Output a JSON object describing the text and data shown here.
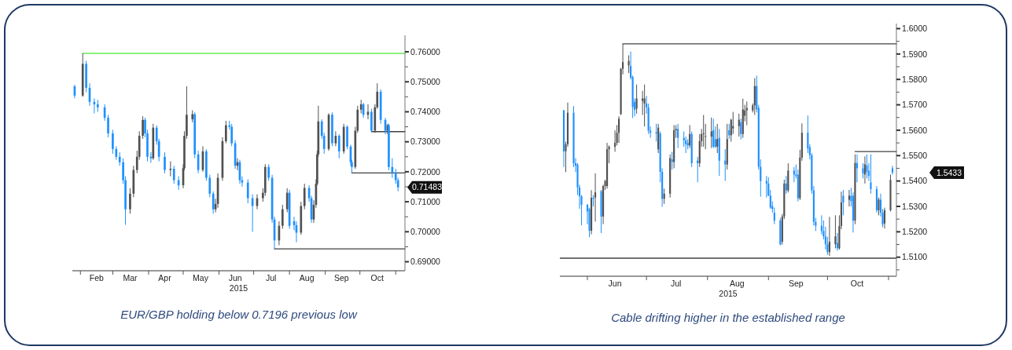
{
  "chart_data": [
    {
      "type": "candlestick",
      "xlabel": "2015",
      "xlim": [
        "2015-01-25",
        "2015-11-09"
      ],
      "ylim": [
        0.687,
        0.7655
      ],
      "xticks": [
        {
          "value": "2015-02-01",
          "label": null
        },
        {
          "value": "2015-02-15",
          "label": "Feb"
        },
        {
          "value": "2015-03-01",
          "label": null
        },
        {
          "value": "2015-03-16",
          "label": "Mar"
        },
        {
          "value": "2015-04-01",
          "label": null
        },
        {
          "value": "2015-04-15",
          "label": "Apr"
        },
        {
          "value": "2015-05-01",
          "label": null
        },
        {
          "value": "2015-05-16",
          "label": "May"
        },
        {
          "value": "2015-06-01",
          "label": null
        },
        {
          "value": "2015-06-15",
          "label": "Jun"
        },
        {
          "value": "2015-07-01",
          "label": null
        },
        {
          "value": "2015-07-16",
          "label": "Jul"
        },
        {
          "value": "2015-08-01",
          "label": null
        },
        {
          "value": "2015-08-16",
          "label": "Aug"
        },
        {
          "value": "2015-09-01",
          "label": null
        },
        {
          "value": "2015-09-15",
          "label": "Sep"
        },
        {
          "value": "2015-10-01",
          "label": null
        },
        {
          "value": "2015-10-16",
          "label": "Oct"
        },
        {
          "value": "2015-11-01",
          "label": null
        }
      ],
      "yticks": [
        {
          "value": 0.69,
          "label": "0.69000"
        },
        {
          "value": 0.695,
          "label": null
        },
        {
          "value": 0.7,
          "label": "0.70000"
        },
        {
          "value": 0.705,
          "label": null
        },
        {
          "value": 0.71,
          "label": "0.71000"
        },
        {
          "value": 0.715,
          "label": null
        },
        {
          "value": 0.72,
          "label": "0.72000"
        },
        {
          "value": 0.725,
          "label": null
        },
        {
          "value": 0.73,
          "label": "0.73000"
        },
        {
          "value": 0.735,
          "label": null
        },
        {
          "value": 0.74,
          "label": "0.74000"
        },
        {
          "value": 0.745,
          "label": null
        },
        {
          "value": 0.75,
          "label": "0.75000"
        },
        {
          "value": 0.755,
          "label": null
        },
        {
          "value": 0.76,
          "label": "0.76000"
        }
      ],
      "x": [
        "2015-01-27",
        "2015-02-03",
        "2015-02-06",
        "2015-02-09",
        "2015-02-13",
        "2015-02-16",
        "2015-02-22",
        "2015-02-25",
        "2015-03-01",
        "2015-03-04",
        "2015-03-07",
        "2015-03-10",
        "2015-03-12",
        "2015-03-16",
        "2015-03-19",
        "2015-03-22",
        "2015-03-24",
        "2015-03-27",
        "2015-03-29",
        "2015-03-31",
        "2015-04-03",
        "2015-04-05",
        "2015-04-08",
        "2015-04-10",
        "2015-04-15",
        "2015-04-20",
        "2015-04-23",
        "2015-04-27",
        "2015-05-01",
        "2015-05-02",
        "2015-05-04",
        "2015-05-09",
        "2015-05-11",
        "2015-05-14",
        "2015-05-18",
        "2015-05-21",
        "2015-05-24",
        "2015-05-27",
        "2015-05-29",
        "2015-05-31",
        "2015-06-04",
        "2015-06-07",
        "2015-06-10",
        "2015-06-12",
        "2015-06-15",
        "2015-06-17",
        "2015-06-19",
        "2015-06-21",
        "2015-06-26",
        "2015-06-30",
        "2015-07-04",
        "2015-07-09",
        "2015-07-11",
        "2015-07-14",
        "2015-07-17",
        "2015-07-19",
        "2015-07-23",
        "2015-07-26",
        "2015-07-30",
        "2015-08-01",
        "2015-08-05",
        "2015-08-07",
        "2015-08-11",
        "2015-08-14",
        "2015-08-18",
        "2015-08-20",
        "2015-08-22",
        "2015-08-24",
        "2015-08-25",
        "2015-08-26",
        "2015-08-29",
        "2015-08-31",
        "2015-09-04",
        "2015-09-07",
        "2015-09-10",
        "2015-09-13",
        "2015-09-17",
        "2015-09-20",
        "2015-09-23",
        "2015-09-24",
        "2015-09-27",
        "2015-09-29",
        "2015-10-02",
        "2015-10-04",
        "2015-10-08",
        "2015-10-11",
        "2015-10-14",
        "2015-10-16",
        "2015-10-19",
        "2015-10-23",
        "2015-10-25",
        "2015-10-26",
        "2015-10-29",
        "2015-11-01",
        "2015-11-03"
      ],
      "ohlc": [
        [
          0.7485,
          0.749,
          0.7445,
          0.7454
        ],
        [
          0.7454,
          0.7595,
          0.745,
          0.756
        ],
        [
          0.756,
          0.757,
          0.7465,
          0.748
        ],
        [
          0.748,
          0.7495,
          0.742,
          0.7433
        ],
        [
          0.7433,
          0.7445,
          0.7395,
          0.7425
        ],
        [
          0.7425,
          0.744,
          0.74,
          0.7415
        ],
        [
          0.7415,
          0.7425,
          0.737,
          0.738
        ],
        [
          0.738,
          0.739,
          0.7315,
          0.7328
        ],
        [
          0.7328,
          0.734,
          0.726,
          0.7276
        ],
        [
          0.7276,
          0.7285,
          0.724,
          0.725
        ],
        [
          0.725,
          0.7265,
          0.722,
          0.7232
        ],
        [
          0.7232,
          0.7245,
          0.716,
          0.7172
        ],
        [
          0.7172,
          0.7185,
          0.7023,
          0.7075
        ],
        [
          0.7075,
          0.7145,
          0.706,
          0.7127
        ],
        [
          0.7127,
          0.722,
          0.7115,
          0.7206
        ],
        [
          0.7206,
          0.727,
          0.7195,
          0.725
        ],
        [
          0.725,
          0.7335,
          0.724,
          0.732
        ],
        [
          0.732,
          0.7385,
          0.731,
          0.7373
        ],
        [
          0.7373,
          0.738,
          0.7315,
          0.7328
        ],
        [
          0.7328,
          0.734,
          0.7235,
          0.725
        ],
        [
          0.725,
          0.7265,
          0.723,
          0.7245
        ],
        [
          0.7245,
          0.736,
          0.724,
          0.7347
        ],
        [
          0.7347,
          0.7355,
          0.729,
          0.7302
        ],
        [
          0.7302,
          0.731,
          0.7235,
          0.725
        ],
        [
          0.725,
          0.7265,
          0.7195,
          0.7206
        ],
        [
          0.7206,
          0.7235,
          0.7185,
          0.721
        ],
        [
          0.721,
          0.722,
          0.716,
          0.7172
        ],
        [
          0.7172,
          0.7185,
          0.714,
          0.7155
        ],
        [
          0.7155,
          0.7225,
          0.7145,
          0.7212
        ],
        [
          0.7212,
          0.7335,
          0.7205,
          0.732
        ],
        [
          0.732,
          0.7485,
          0.731,
          0.739
        ],
        [
          0.7375,
          0.7405,
          0.7365,
          0.7392
        ],
        [
          0.7392,
          0.7398,
          0.7245,
          0.7258
        ],
        [
          0.7258,
          0.727,
          0.7195,
          0.7206
        ],
        [
          0.7206,
          0.7285,
          0.72,
          0.7268
        ],
        [
          0.7268,
          0.7275,
          0.717,
          0.718
        ],
        [
          0.718,
          0.719,
          0.7115,
          0.7127
        ],
        [
          0.7127,
          0.7135,
          0.706,
          0.7075
        ],
        [
          0.7075,
          0.711,
          0.7065,
          0.7093
        ],
        [
          0.7093,
          0.7195,
          0.708,
          0.718
        ],
        [
          0.718,
          0.7315,
          0.717,
          0.7302
        ],
        [
          0.7302,
          0.737,
          0.7295,
          0.7355
        ],
        [
          0.7355,
          0.737,
          0.734,
          0.735
        ],
        [
          0.735,
          0.736,
          0.7285,
          0.7295
        ],
        [
          0.7295,
          0.7305,
          0.721,
          0.722
        ],
        [
          0.722,
          0.7245,
          0.7205,
          0.7232
        ],
        [
          0.7232,
          0.724,
          0.716,
          0.7172
        ],
        [
          0.7172,
          0.7185,
          0.715,
          0.7164
        ],
        [
          0.7164,
          0.7175,
          0.7095,
          0.7112
        ],
        [
          0.7112,
          0.7125,
          0.7,
          0.7086
        ],
        [
          0.7086,
          0.7125,
          0.7075,
          0.7112
        ],
        [
          0.7112,
          0.7145,
          0.71,
          0.713
        ],
        [
          0.713,
          0.7225,
          0.712,
          0.7216
        ],
        [
          0.7216,
          0.7225,
          0.717,
          0.718
        ],
        [
          0.718,
          0.719,
          0.703,
          0.7041
        ],
        [
          0.7041,
          0.705,
          0.6943,
          0.6971
        ],
        [
          0.6971,
          0.7035,
          0.6955,
          0.702
        ],
        [
          0.702,
          0.709,
          0.701,
          0.7075
        ],
        [
          0.7075,
          0.7145,
          0.7065,
          0.713
        ],
        [
          0.713,
          0.714,
          0.701,
          0.702
        ],
        [
          0.7035,
          0.705,
          0.7005,
          0.7022
        ],
        [
          0.7022,
          0.7035,
          0.6965,
          0.6997
        ],
        [
          0.6997,
          0.71,
          0.699,
          0.7086
        ],
        [
          0.7086,
          0.716,
          0.7075,
          0.7146
        ],
        [
          0.7146,
          0.7155,
          0.71,
          0.7112
        ],
        [
          0.7112,
          0.712,
          0.703,
          0.7041
        ],
        [
          0.7041,
          0.7105,
          0.703,
          0.709
        ],
        [
          0.709,
          0.7175,
          0.708,
          0.716
        ],
        [
          0.716,
          0.727,
          0.7155,
          0.7258
        ],
        [
          0.7258,
          0.742,
          0.725,
          0.7368
        ],
        [
          0.7368,
          0.7375,
          0.731,
          0.732
        ],
        [
          0.732,
          0.733,
          0.726,
          0.7276
        ],
        [
          0.7276,
          0.7395,
          0.727,
          0.739
        ],
        [
          0.739,
          0.7398,
          0.7285,
          0.7295
        ],
        [
          0.7295,
          0.7335,
          0.7285,
          0.732
        ],
        [
          0.732,
          0.7325,
          0.7245,
          0.7268
        ],
        [
          0.7268,
          0.736,
          0.726,
          0.735
        ],
        [
          0.735,
          0.7355,
          0.7275,
          0.7284
        ],
        [
          0.7284,
          0.729,
          0.722,
          0.7232
        ],
        [
          0.7232,
          0.724,
          0.7196,
          0.7216
        ],
        [
          0.7216,
          0.735,
          0.721,
          0.7337
        ],
        [
          0.7337,
          0.742,
          0.733,
          0.7407
        ],
        [
          0.7407,
          0.744,
          0.7395,
          0.7425
        ],
        [
          0.7425,
          0.743,
          0.738,
          0.739
        ],
        [
          0.739,
          0.7425,
          0.7375,
          0.74
        ],
        [
          0.74,
          0.741,
          0.7334,
          0.7337
        ],
        [
          0.7337,
          0.7425,
          0.733,
          0.7415
        ],
        [
          0.7415,
          0.7495,
          0.741,
          0.7467
        ],
        [
          0.7467,
          0.7475,
          0.736,
          0.7373
        ],
        [
          0.7373,
          0.738,
          0.7325,
          0.7337
        ],
        [
          0.7337,
          0.736,
          0.7325,
          0.7355
        ],
        [
          0.7355,
          0.736,
          0.7205,
          0.7216
        ],
        [
          0.7216,
          0.7245,
          0.718,
          0.7198
        ],
        [
          0.7198,
          0.721,
          0.716,
          0.7172
        ],
        [
          0.7172,
          0.718,
          0.7135,
          0.71483
        ]
      ],
      "colors": [
        "#1e90ff",
        "#505050",
        "#1e90ff",
        "#1e90ff",
        "#1e90ff",
        "#1e90ff",
        "#1e90ff",
        "#1e90ff",
        "#1e90ff",
        "#1e90ff",
        "#1e90ff",
        "#1e90ff",
        "#1e90ff",
        "#505050",
        "#505050",
        "#505050",
        "#505050",
        "#505050",
        "#1e90ff",
        "#1e90ff",
        "#1e90ff",
        "#505050",
        "#1e90ff",
        "#1e90ff",
        "#1e90ff",
        "#505050",
        "#1e90ff",
        "#1e90ff",
        "#505050",
        "#505050",
        "#505050",
        "#505050",
        "#1e90ff",
        "#1e90ff",
        "#505050",
        "#1e90ff",
        "#1e90ff",
        "#1e90ff",
        "#505050",
        "#505050",
        "#505050",
        "#505050",
        "#1e90ff",
        "#1e90ff",
        "#1e90ff",
        "#505050",
        "#1e90ff",
        "#1e90ff",
        "#1e90ff",
        "#1e90ff",
        "#505050",
        "#505050",
        "#505050",
        "#1e90ff",
        "#1e90ff",
        "#1e90ff",
        "#505050",
        "#505050",
        "#505050",
        "#1e90ff",
        "#1e90ff",
        "#1e90ff",
        "#505050",
        "#505050",
        "#1e90ff",
        "#1e90ff",
        "#505050",
        "#505050",
        "#505050",
        "#505050",
        "#1e90ff",
        "#1e90ff",
        "#505050",
        "#1e90ff",
        "#505050",
        "#1e90ff",
        "#505050",
        "#1e90ff",
        "#1e90ff",
        "#1e90ff",
        "#505050",
        "#505050",
        "#505050",
        "#1e90ff",
        "#505050",
        "#1e90ff",
        "#505050",
        "#505050",
        "#1e90ff",
        "#1e90ff",
        "#505050",
        "#1e90ff",
        "#1e90ff",
        "#1e90ff",
        "#1e90ff"
      ],
      "series": [
        {
          "type": "line",
          "color": "#66ee55",
          "x": [
            "2015-02-03",
            "2015-11-09"
          ],
          "values": [
            0.7595,
            0.7595
          ]
        },
        {
          "type": "line",
          "color": "#404040",
          "x": [
            "2015-07-19",
            "2015-11-09"
          ],
          "values": [
            0.6943,
            0.6943
          ]
        },
        {
          "type": "line",
          "color": "#404040",
          "x": [
            "2015-09-24",
            "2015-11-09"
          ],
          "values": [
            0.7196,
            0.7196
          ]
        },
        {
          "type": "line",
          "color": "#404040",
          "x": [
            "2015-10-11",
            "2015-11-09"
          ],
          "values": [
            0.7334,
            0.7334
          ]
        }
      ],
      "annotations": [
        "0.71483",
        "EUR/GBP holding below 0.7196 previous low"
      ]
    },
    {
      "type": "candlestick",
      "xlabel": "2015",
      "xlim": [
        "2015-05-18",
        "2015-11-05"
      ],
      "ylim": [
        1.5025,
        1.602
      ],
      "xticks": [
        {
          "value": "2015-06-01",
          "label": null
        },
        {
          "value": "2015-06-15",
          "label": "Jun"
        },
        {
          "value": "2015-07-01",
          "label": null
        },
        {
          "value": "2015-07-16",
          "label": "Jul"
        },
        {
          "value": "2015-08-01",
          "label": null
        },
        {
          "value": "2015-08-16",
          "label": "Aug"
        },
        {
          "value": "2015-09-01",
          "label": null
        },
        {
          "value": "2015-09-15",
          "label": "Sep"
        },
        {
          "value": "2015-10-01",
          "label": null
        },
        {
          "value": "2015-10-16",
          "label": "Oct"
        },
        {
          "value": "2015-11-01",
          "label": null
        }
      ],
      "yticks": [
        {
          "value": 1.505,
          "label": null
        },
        {
          "value": 1.51,
          "label": "1.5100"
        },
        {
          "value": 1.515,
          "label": null
        },
        {
          "value": 1.52,
          "label": "1.5200"
        },
        {
          "value": 1.525,
          "label": null
        },
        {
          "value": 1.53,
          "label": "1.5300"
        },
        {
          "value": 1.535,
          "label": null
        },
        {
          "value": 1.54,
          "label": "1.5400"
        },
        {
          "value": 1.545,
          "label": null
        },
        {
          "value": 1.55,
          "label": "1.5500"
        },
        {
          "value": 1.555,
          "label": null
        },
        {
          "value": 1.56,
          "label": "1.5600"
        },
        {
          "value": 1.565,
          "label": null
        },
        {
          "value": 1.57,
          "label": "1.5700"
        },
        {
          "value": 1.575,
          "label": null
        },
        {
          "value": 1.58,
          "label": "1.5800"
        },
        {
          "value": 1.585,
          "label": null
        },
        {
          "value": 1.59,
          "label": "1.5900"
        },
        {
          "value": 1.595,
          "label": null
        },
        {
          "value": 1.6,
          "label": "1.6000"
        }
      ],
      "x": [
        "2015-05-20",
        "2015-05-21",
        "2015-05-22",
        "2015-05-25",
        "2015-05-26",
        "2015-05-27",
        "2015-05-28",
        "2015-05-29",
        "2015-06-01",
        "2015-06-02",
        "2015-06-03",
        "2015-06-04",
        "2015-06-05",
        "2015-06-08",
        "2015-06-09",
        "2015-06-10",
        "2015-06-11",
        "2015-06-12",
        "2015-06-15",
        "2015-06-16",
        "2015-06-17",
        "2015-06-18",
        "2015-06-19",
        "2015-06-22",
        "2015-06-23",
        "2015-06-24",
        "2015-06-25",
        "2015-06-26",
        "2015-06-29",
        "2015-06-30",
        "2015-07-01",
        "2015-07-02",
        "2015-07-03",
        "2015-07-06",
        "2015-07-07",
        "2015-07-08",
        "2015-07-09",
        "2015-07-10",
        "2015-07-13",
        "2015-07-14",
        "2015-07-15",
        "2015-07-16",
        "2015-07-17",
        "2015-07-20",
        "2015-07-21",
        "2015-07-22",
        "2015-07-23",
        "2015-07-24",
        "2015-07-27",
        "2015-07-28",
        "2015-07-29",
        "2015-07-30",
        "2015-07-31",
        "2015-08-03",
        "2015-08-04",
        "2015-08-05",
        "2015-08-06",
        "2015-08-07",
        "2015-08-10",
        "2015-08-11",
        "2015-08-12",
        "2015-08-13",
        "2015-08-14",
        "2015-08-17",
        "2015-08-18",
        "2015-08-19",
        "2015-08-20",
        "2015-08-21",
        "2015-08-24",
        "2015-08-25",
        "2015-08-26",
        "2015-08-27",
        "2015-08-28",
        "2015-08-31",
        "2015-09-01",
        "2015-09-02",
        "2015-09-03",
        "2015-09-04",
        "2015-09-07",
        "2015-09-08",
        "2015-09-09",
        "2015-09-10",
        "2015-09-11",
        "2015-09-14",
        "2015-09-15",
        "2015-09-16",
        "2015-09-17",
        "2015-09-18",
        "2015-09-21",
        "2015-09-22",
        "2015-09-23",
        "2015-09-24",
        "2015-09-25",
        "2015-09-28",
        "2015-09-29",
        "2015-09-30",
        "2015-10-01",
        "2015-10-02",
        "2015-10-05",
        "2015-10-06",
        "2015-10-07",
        "2015-10-08",
        "2015-10-09",
        "2015-10-12",
        "2015-10-13",
        "2015-10-14",
        "2015-10-15",
        "2015-10-16",
        "2015-10-19",
        "2015-10-20",
        "2015-10-21",
        "2015-10-22",
        "2015-10-23",
        "2015-10-26",
        "2015-10-27",
        "2015-10-28",
        "2015-10-29",
        "2015-10-30",
        "2015-11-02",
        "2015-11-03"
      ],
      "ohlc": [
        [
          1.5678,
          1.568,
          1.5455,
          1.5517
        ],
        [
          1.5517,
          1.5555,
          1.5435,
          1.5545
        ],
        [
          1.5545,
          1.5709,
          1.5535,
          1.5669
        ],
        [
          1.5669,
          1.5695,
          1.5455,
          1.547
        ],
        [
          1.547,
          1.549,
          1.5435,
          1.546
        ],
        [
          1.5465,
          1.547,
          1.5345,
          1.5375
        ],
        [
          1.5375,
          1.5385,
          1.529,
          1.534
        ],
        [
          1.534,
          1.5345,
          1.5225,
          1.5306
        ],
        [
          1.5306,
          1.531,
          1.523,
          1.528
        ],
        [
          1.529,
          1.5295,
          1.5179,
          1.5204
        ],
        [
          1.5204,
          1.5364,
          1.519,
          1.5334
        ],
        [
          1.5334,
          1.5345,
          1.53,
          1.533
        ],
        [
          1.5335,
          1.543,
          1.524,
          1.5355
        ],
        [
          1.536,
          1.5365,
          1.5195,
          1.526
        ],
        [
          1.526,
          1.5385,
          1.523,
          1.538
        ],
        [
          1.538,
          1.5405,
          1.5365,
          1.54
        ],
        [
          1.538,
          1.555,
          1.537,
          1.5525
        ],
        [
          1.5525,
          1.554,
          1.547,
          1.5535
        ],
        [
          1.5535,
          1.56,
          1.5515,
          1.555
        ],
        [
          1.555,
          1.562,
          1.554,
          1.559
        ],
        [
          1.559,
          1.5655,
          1.555,
          1.5645
        ],
        [
          1.5663,
          1.5845,
          1.566,
          1.5842
        ],
        [
          1.5842,
          1.594,
          1.582,
          1.5868
        ],
        [
          1.5855,
          1.5895,
          1.5825,
          1.5873
        ],
        [
          1.5853,
          1.591,
          1.58,
          1.5807
        ],
        [
          1.581,
          1.5815,
          1.5648,
          1.5691
        ],
        [
          1.5712,
          1.5725,
          1.5655,
          1.568
        ],
        [
          1.5685,
          1.578,
          1.5665,
          1.5725
        ],
        [
          1.5715,
          1.5755,
          1.566,
          1.5725
        ],
        [
          1.5705,
          1.578,
          1.5615,
          1.5725
        ],
        [
          1.5705,
          1.5735,
          1.5665,
          1.569
        ],
        [
          1.569,
          1.5705,
          1.5585,
          1.5598
        ],
        [
          1.5598,
          1.5615,
          1.557,
          1.559
        ],
        [
          1.5592,
          1.5625,
          1.5555,
          1.5587
        ],
        [
          1.5525,
          1.5625,
          1.551,
          1.561
        ],
        [
          1.5587,
          1.5595,
          1.5395,
          1.5436
        ],
        [
          1.5436,
          1.545,
          1.5298,
          1.533
        ],
        [
          1.533,
          1.537,
          1.531,
          1.535
        ],
        [
          1.535,
          1.5505,
          1.5335,
          1.549
        ],
        [
          1.5485,
          1.5515,
          1.5445,
          1.5475
        ],
        [
          1.5475,
          1.562,
          1.545,
          1.56
        ],
        [
          1.56,
          1.562,
          1.557,
          1.5605
        ],
        [
          1.5605,
          1.5625,
          1.553,
          1.557
        ],
        [
          1.557,
          1.5595,
          1.5535,
          1.556
        ],
        [
          1.556,
          1.5575,
          1.551,
          1.5545
        ],
        [
          1.555,
          1.5565,
          1.5525,
          1.554
        ],
        [
          1.554,
          1.562,
          1.553,
          1.5585
        ],
        [
          1.5585,
          1.5595,
          1.5455,
          1.547
        ],
        [
          1.548,
          1.5495,
          1.5395,
          1.547
        ],
        [
          1.547,
          1.5585,
          1.5455,
          1.5557
        ],
        [
          1.5557,
          1.5605,
          1.5535,
          1.5585
        ],
        [
          1.5585,
          1.566,
          1.5535,
          1.5588
        ],
        [
          1.5575,
          1.5625,
          1.5525,
          1.5577
        ],
        [
          1.5575,
          1.565,
          1.553,
          1.5595
        ],
        [
          1.56,
          1.5645,
          1.553,
          1.5535
        ],
        [
          1.5565,
          1.5615,
          1.553,
          1.5535
        ],
        [
          1.5535,
          1.5625,
          1.551,
          1.5565
        ],
        [
          1.557,
          1.5605,
          1.542,
          1.548
        ],
        [
          1.548,
          1.5525,
          1.54,
          1.5465
        ],
        [
          1.5465,
          1.5625,
          1.5445,
          1.5565
        ],
        [
          1.56,
          1.5625,
          1.5565,
          1.558
        ],
        [
          1.558,
          1.5645,
          1.5555,
          1.5641
        ],
        [
          1.5607,
          1.5672,
          1.5585,
          1.5616
        ],
        [
          1.5616,
          1.5665,
          1.5575,
          1.5641
        ],
        [
          1.5631,
          1.5645,
          1.5564,
          1.5585
        ],
        [
          1.5585,
          1.5724,
          1.557,
          1.5682
        ],
        [
          1.5657,
          1.57,
          1.5635,
          1.5678
        ],
        [
          1.5678,
          1.5713,
          1.562,
          1.5688
        ],
        [
          1.5678,
          1.5705,
          1.567,
          1.5698
        ],
        [
          1.5698,
          1.5805,
          1.566,
          1.5774
        ],
        [
          1.5774,
          1.5815,
          1.567,
          1.5682
        ],
        [
          1.5688,
          1.57,
          1.5445,
          1.5456
        ],
        [
          1.5456,
          1.5485,
          1.5338,
          1.54
        ],
        [
          1.54,
          1.542,
          1.5335,
          1.539
        ],
        [
          1.539,
          1.5415,
          1.534,
          1.5343
        ],
        [
          1.5343,
          1.5365,
          1.529,
          1.5296
        ],
        [
          1.5301,
          1.532,
          1.5275,
          1.529
        ],
        [
          1.5275,
          1.5295,
          1.523,
          1.5244
        ],
        [
          1.5244,
          1.5255,
          1.5146,
          1.5151
        ],
        [
          1.5161,
          1.527,
          1.515,
          1.526
        ],
        [
          1.526,
          1.5405,
          1.525,
          1.539
        ],
        [
          1.539,
          1.542,
          1.535,
          1.5363
        ],
        [
          1.5363,
          1.547,
          1.5355,
          1.5441
        ],
        [
          1.5441,
          1.5455,
          1.5395,
          1.5425
        ],
        [
          1.5425,
          1.5465,
          1.541,
          1.542
        ],
        [
          1.5425,
          1.5445,
          1.532,
          1.5332
        ],
        [
          1.5332,
          1.5523,
          1.5325,
          1.5492
        ],
        [
          1.5492,
          1.5627,
          1.548,
          1.559
        ],
        [
          1.559,
          1.5658,
          1.551,
          1.5528
        ],
        [
          1.5533,
          1.5545,
          1.5485,
          1.5502
        ],
        [
          1.5502,
          1.551,
          1.535,
          1.5363
        ],
        [
          1.5363,
          1.538,
          1.5225,
          1.5239
        ],
        [
          1.5239,
          1.5255,
          1.5203,
          1.5224
        ],
        [
          1.5224,
          1.5265,
          1.519,
          1.5203
        ],
        [
          1.5203,
          1.5245,
          1.517,
          1.5182
        ],
        [
          1.5182,
          1.522,
          1.513,
          1.5151
        ],
        [
          1.5151,
          1.518,
          1.5109,
          1.512
        ],
        [
          1.512,
          1.5259,
          1.5105,
          1.5161
        ],
        [
          1.5151,
          1.5265,
          1.5135,
          1.5182
        ],
        [
          1.5156,
          1.5195,
          1.5125,
          1.5135
        ],
        [
          1.5135,
          1.5265,
          1.513,
          1.5223
        ],
        [
          1.5223,
          1.5358,
          1.521,
          1.5316
        ],
        [
          1.5342,
          1.5365,
          1.5265,
          1.5316
        ],
        [
          1.5326,
          1.5365,
          1.53,
          1.5342
        ],
        [
          1.5342,
          1.5373,
          1.53,
          1.5321
        ],
        [
          1.5342,
          1.5355,
          1.5197,
          1.5244
        ],
        [
          1.5244,
          1.5505,
          1.523,
          1.5471
        ],
        [
          1.5471,
          1.5505,
          1.5395,
          1.545
        ],
        [
          1.545,
          1.547,
          1.541,
          1.543
        ],
        [
          1.5425,
          1.5497,
          1.539,
          1.5466
        ],
        [
          1.5461,
          1.5505,
          1.541,
          1.5435
        ],
        [
          1.544,
          1.547,
          1.54,
          1.542
        ],
        [
          1.5394,
          1.5505,
          1.535,
          1.5368
        ],
        [
          1.5368,
          1.538,
          1.5275,
          1.5285
        ],
        [
          1.5285,
          1.5335,
          1.5265,
          1.5327
        ],
        [
          1.5327,
          1.535,
          1.526,
          1.5275
        ],
        [
          1.5275,
          1.529,
          1.5218,
          1.5229
        ],
        [
          1.5233,
          1.5295,
          1.5213,
          1.5285
        ],
        [
          1.5285,
          1.5425,
          1.528,
          1.5404
        ],
        [
          1.545,
          1.546,
          1.5425,
          1.5433
        ]
      ],
      "colors": [
        "#1e90ff",
        "#505050",
        "#505050",
        "#1e90ff",
        "#1e90ff",
        "#1e90ff",
        "#1e90ff",
        "#1e90ff",
        "#1e90ff",
        "#1e90ff",
        "#505050",
        "#1e90ff",
        "#505050",
        "#1e90ff",
        "#505050",
        "#505050",
        "#505050",
        "#505050",
        "#505050",
        "#505050",
        "#505050",
        "#505050",
        "#505050",
        "#505050",
        "#1e90ff",
        "#1e90ff",
        "#1e90ff",
        "#505050",
        "#505050",
        "#505050",
        "#1e90ff",
        "#1e90ff",
        "#1e90ff",
        "#1e90ff",
        "#505050",
        "#1e90ff",
        "#1e90ff",
        "#505050",
        "#505050",
        "#1e90ff",
        "#505050",
        "#505050",
        "#1e90ff",
        "#1e90ff",
        "#1e90ff",
        "#1e90ff",
        "#505050",
        "#1e90ff",
        "#1e90ff",
        "#505050",
        "#505050",
        "#505050",
        "#505050",
        "#505050",
        "#1e90ff",
        "#1e90ff",
        "#505050",
        "#1e90ff",
        "#1e90ff",
        "#505050",
        "#1e90ff",
        "#505050",
        "#505050",
        "#505050",
        "#1e90ff",
        "#505050",
        "#505050",
        "#505050",
        "#505050",
        "#505050",
        "#1e90ff",
        "#1e90ff",
        "#1e90ff",
        "#1e90ff",
        "#1e90ff",
        "#1e90ff",
        "#1e90ff",
        "#1e90ff",
        "#1e90ff",
        "#505050",
        "#505050",
        "#1e90ff",
        "#505050",
        "#1e90ff",
        "#1e90ff",
        "#1e90ff",
        "#505050",
        "#505050",
        "#1e90ff",
        "#1e90ff",
        "#1e90ff",
        "#1e90ff",
        "#1e90ff",
        "#1e90ff",
        "#1e90ff",
        "#1e90ff",
        "#1e90ff",
        "#505050",
        "#505050",
        "#1e90ff",
        "#505050",
        "#505050",
        "#1e90ff",
        "#505050",
        "#1e90ff",
        "#1e90ff",
        "#505050",
        "#1e90ff",
        "#1e90ff",
        "#505050",
        "#1e90ff",
        "#1e90ff",
        "#1e90ff",
        "#1e90ff",
        "#505050",
        "#1e90ff",
        "#1e90ff",
        "#505050",
        "#505050",
        "#1e90ff"
      ],
      "series": [
        {
          "type": "line",
          "color": "#404040",
          "x": [
            "2015-06-19",
            "2015-11-05"
          ],
          "values": [
            1.594,
            1.594
          ]
        },
        {
          "type": "line",
          "color": "#404040",
          "x": [
            "2015-10-15",
            "2015-11-05"
          ],
          "values": [
            1.5516,
            1.5516
          ]
        }
      ],
      "ref_lines": [
        {
          "axis": "y",
          "value": 1.5096,
          "color": "#404040"
        }
      ],
      "annotations": [
        "1.5433",
        "Cable drifting higher in the established range"
      ]
    }
  ]
}
